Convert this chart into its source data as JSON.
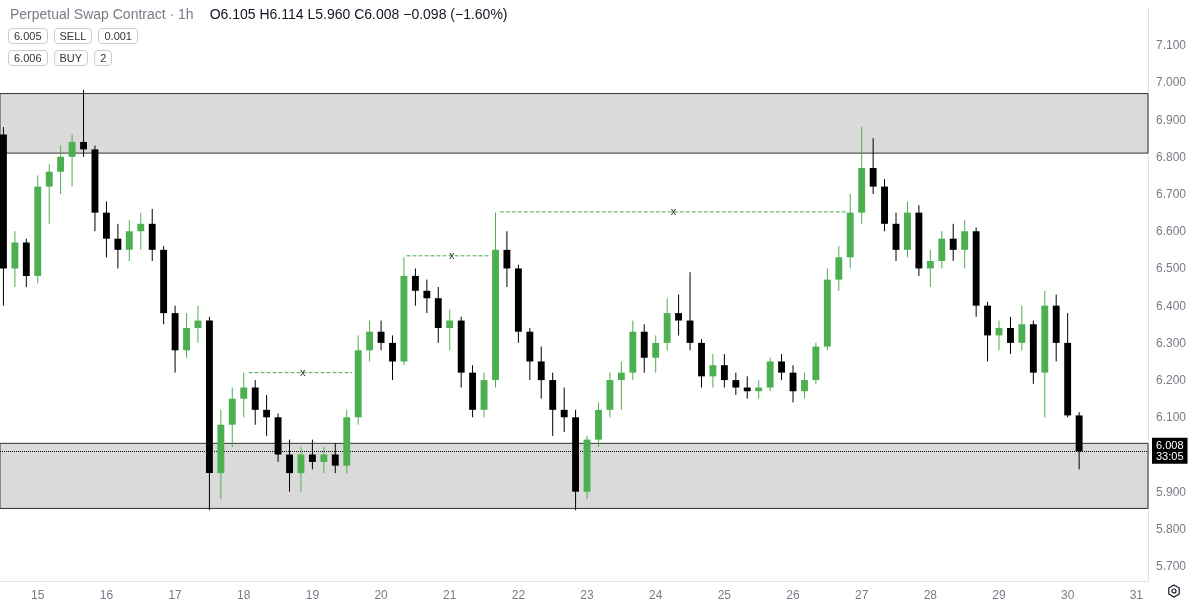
{
  "chart_data": {
    "type": "candlestick",
    "title": "Perpetual Swap Contract · 1h",
    "subtitle": "O6.105 H6.114 L5.960 C6.008 −0.098 (−1.60%)",
    "x": [
      14.5,
      14.667,
      14.833,
      15,
      15.167,
      15.333,
      15.5,
      15.667,
      15.833,
      16,
      16.167,
      16.333,
      16.5,
      16.667,
      16.833,
      17,
      17.167,
      17.333,
      17.5,
      17.667,
      17.833,
      18,
      18.167,
      18.333,
      18.5,
      18.667,
      18.833,
      19,
      19.167,
      19.333,
      19.5,
      19.667,
      19.833,
      20,
      20.167,
      20.333,
      20.5,
      20.667,
      20.833,
      21,
      21.167,
      21.333,
      21.5,
      21.667,
      21.833,
      22,
      22.167,
      22.333,
      22.5,
      22.667,
      22.833,
      23,
      23.167,
      23.333,
      23.5,
      23.667,
      23.833,
      24,
      24.167,
      24.333,
      24.5,
      24.667,
      24.833,
      25,
      25.167,
      25.333,
      25.5,
      25.667,
      25.833,
      26,
      26.167,
      26.333,
      26.5,
      26.667,
      26.833,
      27,
      27.167,
      27.333,
      27.5,
      27.667,
      27.833,
      28,
      28.167,
      28.333,
      28.5,
      28.667,
      28.833,
      29,
      29.167,
      29.333,
      29.5,
      29.667,
      29.833,
      30,
      30.167
    ],
    "ohlc": [
      [
        6.86,
        6.88,
        6.4,
        6.5
      ],
      [
        6.5,
        6.6,
        6.45,
        6.57
      ],
      [
        6.57,
        6.58,
        6.45,
        6.48
      ],
      [
        6.48,
        6.75,
        6.46,
        6.72
      ],
      [
        6.72,
        6.78,
        6.62,
        6.76
      ],
      [
        6.76,
        6.83,
        6.7,
        6.8
      ],
      [
        6.8,
        6.86,
        6.72,
        6.84
      ],
      [
        6.84,
        6.98,
        6.8,
        6.82
      ],
      [
        6.82,
        6.83,
        6.6,
        6.65
      ],
      [
        6.65,
        6.68,
        6.53,
        6.58
      ],
      [
        6.58,
        6.62,
        6.5,
        6.55
      ],
      [
        6.55,
        6.63,
        6.52,
        6.6
      ],
      [
        6.6,
        6.65,
        6.55,
        6.62
      ],
      [
        6.62,
        6.66,
        6.52,
        6.55
      ],
      [
        6.55,
        6.56,
        6.35,
        6.38
      ],
      [
        6.38,
        6.4,
        6.22,
        6.28
      ],
      [
        6.28,
        6.38,
        6.26,
        6.34
      ],
      [
        6.34,
        6.4,
        6.3,
        6.36
      ],
      [
        6.36,
        6.37,
        5.85,
        5.95
      ],
      [
        5.95,
        6.12,
        5.88,
        6.08
      ],
      [
        6.08,
        6.18,
        6.02,
        6.15
      ],
      [
        6.15,
        6.22,
        6.1,
        6.18
      ],
      [
        6.18,
        6.2,
        6.08,
        6.12
      ],
      [
        6.12,
        6.16,
        6.05,
        6.1
      ],
      [
        6.1,
        6.11,
        5.98,
        6.0
      ],
      [
        6.0,
        6.04,
        5.9,
        5.95
      ],
      [
        5.95,
        6.02,
        5.9,
        6.0
      ],
      [
        6.0,
        6.04,
        5.96,
        5.98
      ],
      [
        5.98,
        6.02,
        5.95,
        6.0
      ],
      [
        6.0,
        6.03,
        5.95,
        5.97
      ],
      [
        5.97,
        6.12,
        5.95,
        6.1
      ],
      [
        6.1,
        6.32,
        6.08,
        6.28
      ],
      [
        6.28,
        6.36,
        6.25,
        6.33
      ],
      [
        6.33,
        6.36,
        6.28,
        6.3
      ],
      [
        6.3,
        6.32,
        6.2,
        6.25
      ],
      [
        6.25,
        6.53,
        6.24,
        6.48
      ],
      [
        6.48,
        6.5,
        6.4,
        6.44
      ],
      [
        6.44,
        6.47,
        6.38,
        6.42
      ],
      [
        6.42,
        6.45,
        6.3,
        6.34
      ],
      [
        6.34,
        6.39,
        6.28,
        6.36
      ],
      [
        6.36,
        6.37,
        6.18,
        6.22
      ],
      [
        6.22,
        6.24,
        6.1,
        6.12
      ],
      [
        6.12,
        6.22,
        6.1,
        6.2
      ],
      [
        6.2,
        6.65,
        6.18,
        6.55
      ],
      [
        6.55,
        6.6,
        6.45,
        6.5
      ],
      [
        6.5,
        6.51,
        6.3,
        6.33
      ],
      [
        6.33,
        6.34,
        6.2,
        6.25
      ],
      [
        6.25,
        6.29,
        6.15,
        6.2
      ],
      [
        6.2,
        6.22,
        6.05,
        6.12
      ],
      [
        6.12,
        6.18,
        6.06,
        6.1
      ],
      [
        6.1,
        6.12,
        5.85,
        5.9
      ],
      [
        5.9,
        6.05,
        5.88,
        6.04
      ],
      [
        6.04,
        6.14,
        6.02,
        6.12
      ],
      [
        6.12,
        6.22,
        6.1,
        6.2
      ],
      [
        6.2,
        6.25,
        6.12,
        6.22
      ],
      [
        6.22,
        6.36,
        6.2,
        6.33
      ],
      [
        6.33,
        6.35,
        6.22,
        6.26
      ],
      [
        6.26,
        6.32,
        6.22,
        6.3
      ],
      [
        6.3,
        6.42,
        6.28,
        6.38
      ],
      [
        6.38,
        6.43,
        6.32,
        6.36
      ],
      [
        6.36,
        6.49,
        6.28,
        6.3
      ],
      [
        6.3,
        6.31,
        6.18,
        6.21
      ],
      [
        6.21,
        6.27,
        6.18,
        6.24
      ],
      [
        6.24,
        6.27,
        6.18,
        6.2
      ],
      [
        6.2,
        6.22,
        6.16,
        6.18
      ],
      [
        6.18,
        6.21,
        6.15,
        6.17
      ],
      [
        6.17,
        6.2,
        6.15,
        6.18
      ],
      [
        6.18,
        6.26,
        6.17,
        6.25
      ],
      [
        6.25,
        6.27,
        6.2,
        6.22
      ],
      [
        6.22,
        6.24,
        6.14,
        6.17
      ],
      [
        6.17,
        6.22,
        6.15,
        6.2
      ],
      [
        6.2,
        6.3,
        6.19,
        6.29
      ],
      [
        6.29,
        6.5,
        6.28,
        6.47
      ],
      [
        6.47,
        6.56,
        6.44,
        6.53
      ],
      [
        6.53,
        6.7,
        6.5,
        6.65
      ],
      [
        6.65,
        6.88,
        6.62,
        6.77
      ],
      [
        6.77,
        6.85,
        6.7,
        6.72
      ],
      [
        6.72,
        6.74,
        6.6,
        6.62
      ],
      [
        6.62,
        6.65,
        6.52,
        6.55
      ],
      [
        6.55,
        6.68,
        6.53,
        6.65
      ],
      [
        6.65,
        6.67,
        6.48,
        6.5
      ],
      [
        6.5,
        6.55,
        6.45,
        6.52
      ],
      [
        6.52,
        6.6,
        6.5,
        6.58
      ],
      [
        6.58,
        6.62,
        6.52,
        6.55
      ],
      [
        6.55,
        6.63,
        6.5,
        6.6
      ],
      [
        6.6,
        6.61,
        6.37,
        6.4
      ],
      [
        6.4,
        6.41,
        6.25,
        6.32
      ],
      [
        6.32,
        6.36,
        6.28,
        6.34
      ],
      [
        6.34,
        6.37,
        6.27,
        6.3
      ],
      [
        6.3,
        6.4,
        6.28,
        6.35
      ],
      [
        6.35,
        6.36,
        6.19,
        6.22
      ],
      [
        6.22,
        6.44,
        6.1,
        6.4
      ],
      [
        6.4,
        6.43,
        6.25,
        6.3
      ],
      [
        6.3,
        6.38,
        6.1,
        6.105
      ],
      [
        6.105,
        6.114,
        5.96,
        6.008
      ]
    ],
    "series": [
      {
        "type": "line",
        "color": "#4caf50",
        "line_style": "dashed",
        "marker": "none",
        "x": [
          18.07,
          19.58
        ],
        "values": [
          6.22,
          6.22
        ]
      },
      {
        "type": "line",
        "color": "#4caf50",
        "line_style": "dashed",
        "marker": "none",
        "x": [
          20.37,
          21.6
        ],
        "values": [
          6.534,
          6.534
        ]
      },
      {
        "type": "line",
        "color": "#4caf50",
        "line_style": "dashed",
        "marker": "none",
        "x": [
          21.73,
          26.77
        ],
        "values": [
          6.652,
          6.652
        ]
      }
    ],
    "bands": [
      {
        "axis": "y",
        "from": 6.81,
        "to": 6.97,
        "color": "#dadada"
      },
      {
        "axis": "y",
        "from": 5.855,
        "to": 6.03,
        "color": "#dadada"
      }
    ],
    "ref_lines": [
      {
        "axis": "y",
        "value": 6.008,
        "label": "6.008\n33:05",
        "color": "#000000",
        "line_style": "dotted"
      }
    ],
    "annotations": [
      "6.005",
      "SELL",
      "0.001",
      "6.006",
      "BUY",
      "2",
      {
        "text": "x",
        "x": 18.86,
        "y": 6.22
      },
      {
        "text": "x",
        "x": 21.03,
        "y": 6.534
      },
      {
        "text": "x",
        "x": 24.26,
        "y": 6.652
      }
    ],
    "xlim": [
      14.45,
      31.17
    ],
    "xticks": [
      15,
      16,
      17,
      18,
      19,
      20,
      21,
      22,
      23,
      24,
      25,
      26,
      27,
      28,
      29,
      30,
      31
    ],
    "ylim": [
      5.66,
      7.2
    ],
    "yticks": [
      {
        "value": 5.7,
        "label": "5.700"
      },
      {
        "value": 5.8,
        "label": "5.800"
      },
      {
        "value": 5.9,
        "label": "5.900"
      },
      {
        "value": 6.1,
        "label": "6.100"
      },
      {
        "value": 6.2,
        "label": "6.200"
      },
      {
        "value": 6.3,
        "label": "6.300"
      },
      {
        "value": 6.4,
        "label": "6.400"
      },
      {
        "value": 6.5,
        "label": "6.500"
      },
      {
        "value": 6.6,
        "label": "6.600"
      },
      {
        "value": 6.7,
        "label": "6.700"
      },
      {
        "value": 6.8,
        "label": "6.800"
      },
      {
        "value": 6.9,
        "label": "6.900"
      },
      {
        "value": 7.0,
        "label": "7.000"
      },
      {
        "value": 7.1,
        "label": "7.100"
      }
    ],
    "legend": false
  }
}
